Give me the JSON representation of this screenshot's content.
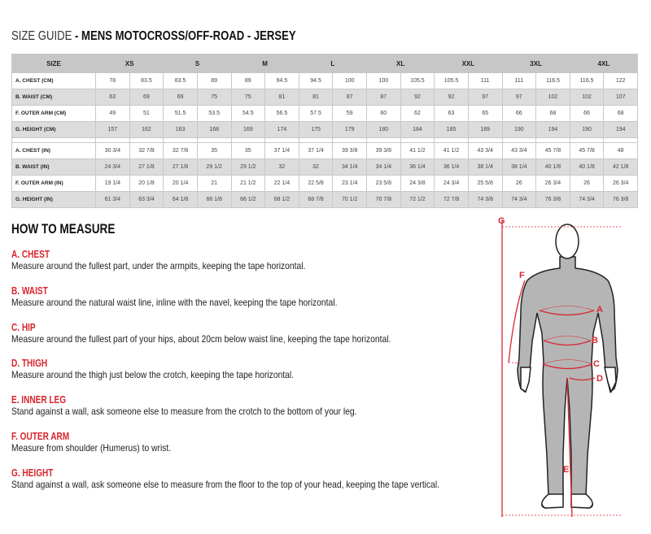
{
  "title": {
    "prefix": "SIZE GUIDE",
    "main": " - MENS MOTOCROSS/OFF-ROAD - JERSEY"
  },
  "table": {
    "header_label": "SIZE",
    "sizes": [
      "XS",
      "S",
      "M",
      "L",
      "XL",
      "XXL",
      "3XL",
      "4XL"
    ],
    "cm_rows": [
      {
        "label": "A. CHEST (CM)",
        "values": [
          "78",
          "83.5",
          "83.5",
          "89",
          "89",
          "94.5",
          "94.5",
          "100",
          "100",
          "105.5",
          "105.5",
          "111",
          "111",
          "116.5",
          "116.5",
          "122"
        ]
      },
      {
        "label": "B. WAIST (CM)",
        "values": [
          "63",
          "69",
          "69",
          "75",
          "75",
          "81",
          "81",
          "87",
          "87",
          "92",
          "92",
          "97",
          "97",
          "102",
          "102",
          "107"
        ]
      },
      {
        "label": "F. OUTER ARM (CM)",
        "values": [
          "49",
          "51",
          "51.5",
          "53.5",
          "54.5",
          "56.5",
          "57.5",
          "59",
          "60",
          "62",
          "63",
          "65",
          "66",
          "68",
          "66",
          "68"
        ]
      },
      {
        "label": "G. HEIGHT (CM)",
        "values": [
          "157",
          "162",
          "163",
          "168",
          "169",
          "174",
          "175",
          "179",
          "180",
          "184",
          "185",
          "189",
          "190",
          "194",
          "190",
          "194"
        ]
      }
    ],
    "in_rows": [
      {
        "label": "A. CHEST (IN)",
        "values": [
          "30 3/4",
          "32 7/8",
          "32 7/8",
          "35",
          "35",
          "37 1/4",
          "37 1/4",
          "39 3/8",
          "39 3/8",
          "41 1/2",
          "41 1/2",
          "43 3/4",
          "43 3/4",
          "45 7/8",
          "45 7/8",
          "48"
        ]
      },
      {
        "label": "B. WAIST (IN)",
        "values": [
          "24 3/4",
          "27 1/8",
          "27 1/8",
          "29 1/2",
          "29 1/2",
          "32",
          "32",
          "34 1/4",
          "34 1/4",
          "36 1/4",
          "36 1/4",
          "38 1/4",
          "38 1/4",
          "40 1/8",
          "40 1/8",
          "42 1/8"
        ]
      },
      {
        "label": "F. OUTER ARM (IN)",
        "values": [
          "19 1/4",
          "20 1/8",
          "20 1/4",
          "21",
          "21 1/2",
          "22 1/4",
          "22 5/8",
          "23 1/4",
          "23 5/8",
          "24 3/8",
          "24 3/4",
          "25 5/8",
          "26",
          "26 3/4",
          "26",
          "26 3/4"
        ]
      },
      {
        "label": "G. HEIGHT (IN)",
        "values": [
          "61 3/4",
          "63 3/4",
          "64 1/8",
          "66 1/8",
          "66 1/2",
          "68 1/2",
          "68 7/8",
          "70 1/2",
          "70 7/8",
          "72 1/2",
          "72 7/8",
          "74 3/8",
          "74 3/4",
          "76 3/8",
          "74 3/4",
          "76 3/8"
        ]
      }
    ]
  },
  "how_to_measure": {
    "heading": "HOW TO MEASURE",
    "items": [
      {
        "title": "A. CHEST",
        "text": "Measure around the fullest part, under the armpits, keeping the tape horizontal."
      },
      {
        "title": "B. WAIST",
        "text": "Measure around the natural waist line, inline with the navel, keeping the tape horizontal."
      },
      {
        "title": "C. HIP",
        "text": "Measure around the fullest part of your hips, about 20cm below waist line, keeping the tape horizontal."
      },
      {
        "title": "D. THIGH",
        "text": "Measure around the thigh just below the crotch, keeping the tape horizontal."
      },
      {
        "title": "E. INNER LEG",
        "text": "Stand against a wall, ask someone else to measure from the crotch to the bottom of your leg."
      },
      {
        "title": "F. OUTER ARM",
        "text": "Measure from shoulder (Humerus) to wrist."
      },
      {
        "title": "G. HEIGHT",
        "text": "Stand against a wall, ask someone else to measure from the floor to the top of your head, keeping the tape vertical."
      }
    ]
  },
  "figure": {
    "labels": [
      "A",
      "B",
      "C",
      "D",
      "E",
      "F",
      "G"
    ]
  },
  "colors": {
    "accent": "#d8262e",
    "header_bg": "#c7c7c7",
    "alt_row_bg": "#dcdcdc",
    "body_fill": "#b5b5b5"
  }
}
